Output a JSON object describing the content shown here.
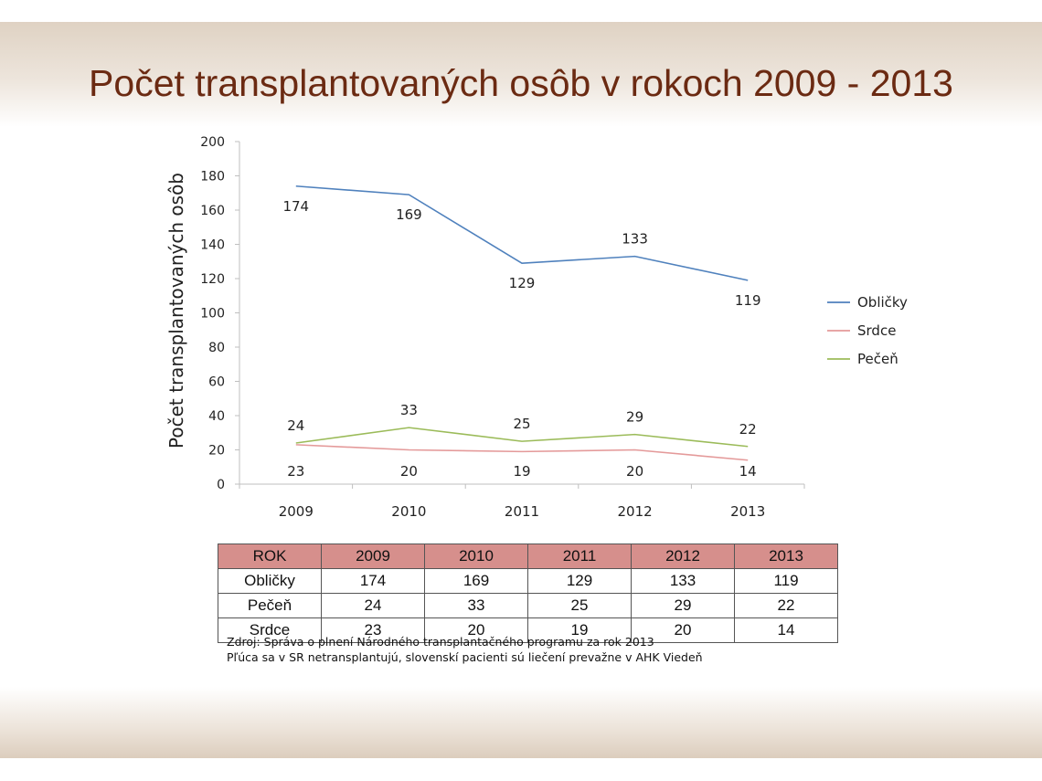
{
  "title": "Počet transplantovaných osôb v rokoch 2009 - 2013",
  "chart_data": {
    "type": "line",
    "ylabel": "Počet transplantovaných osôb",
    "xlabel": "",
    "categories": [
      "2009",
      "2010",
      "2011",
      "2012",
      "2013"
    ],
    "ylim": [
      0,
      200
    ],
    "yticks": [
      0,
      20,
      40,
      60,
      80,
      100,
      120,
      140,
      160,
      180,
      200
    ],
    "grid": false,
    "legend_position": "right",
    "series": [
      {
        "name": "Obličky",
        "color": "#4f81bd",
        "values": [
          174,
          169,
          129,
          133,
          119
        ]
      },
      {
        "name": "Srdce",
        "color": "#e49a9a",
        "values": [
          23,
          20,
          19,
          20,
          14
        ]
      },
      {
        "name": "Pečeň",
        "color": "#9bbb59",
        "values": [
          24,
          33,
          25,
          29,
          22
        ]
      }
    ]
  },
  "table": {
    "header": [
      "ROK",
      "2009",
      "2010",
      "2011",
      "2012",
      "2013"
    ],
    "rows": [
      [
        "Obličky",
        "174",
        "169",
        "129",
        "133",
        "119"
      ],
      [
        "Pečeň",
        "24",
        "33",
        "25",
        "29",
        "22"
      ],
      [
        "Srdce",
        "23",
        "20",
        "19",
        "20",
        "14"
      ]
    ]
  },
  "source": {
    "line1": "Zdroj: Správa o plnení Národného transplantačného programu za rok 2013",
    "line2": "Pľúca sa v SR netransplantujú, slovenskí pacienti sú liečení prevažne v AHK Viedeň"
  }
}
